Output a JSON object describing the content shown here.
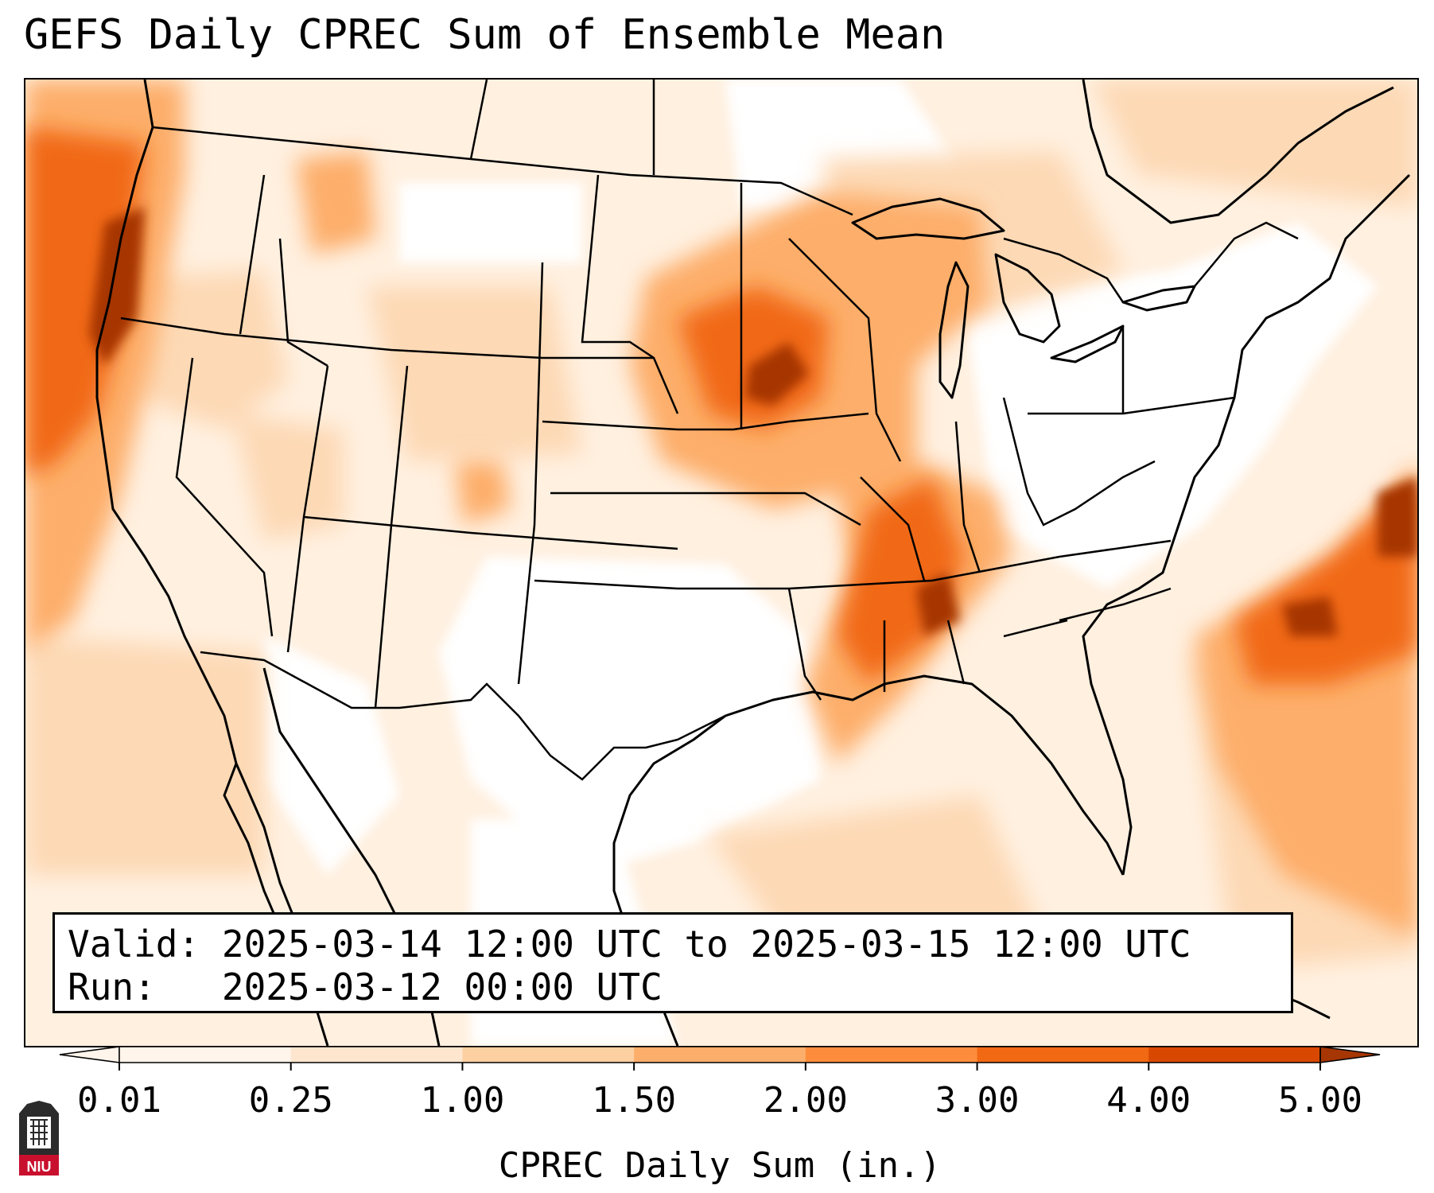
{
  "title": "GEFS Daily CPREC Sum of Ensemble Mean",
  "info": {
    "valid_label": "Valid:",
    "valid_value": "2025-03-14 12:00 UTC to 2025-03-15 12:00 UTC",
    "run_label": "Run:",
    "run_value": "2025-03-12 00:00 UTC"
  },
  "colorbar": {
    "label": "CPREC Daily Sum (in.)",
    "ticks": [
      "0.01",
      "0.25",
      "1.00",
      "1.50",
      "2.00",
      "3.00",
      "4.00",
      "5.00"
    ],
    "colors": [
      "#fff5eb",
      "#fee6ce",
      "#fdd0a2",
      "#fdae6b",
      "#fd8d3c",
      "#f16913",
      "#d94801",
      "#a63603"
    ],
    "extend": "both"
  },
  "logo": {
    "text": "NIU",
    "colors": {
      "tower": "#2b2b2b",
      "band": "#c8102e"
    }
  },
  "map": {
    "field": "CPREC daily sum",
    "projection": "Lambert conformal (CONUS)",
    "colors": {
      "light": "#fee6ce",
      "mid": "#fdae6b",
      "high": "#fd8d3c",
      "heavy": "#e6550d",
      "max": "#a63603",
      "borders": "#000000"
    }
  }
}
